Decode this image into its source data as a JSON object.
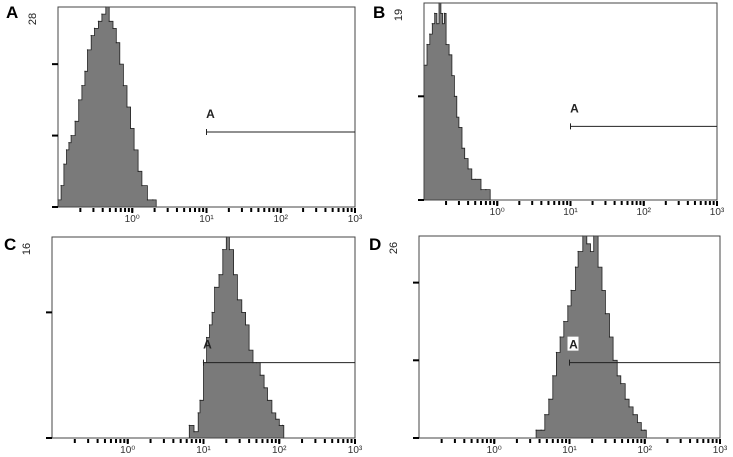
{
  "chart_data": [
    {
      "type": "area",
      "panel_label": "A",
      "x_scale": "log",
      "xlim": [
        0.1,
        1000
      ],
      "ylim": [
        0,
        28
      ],
      "y_max_label": "28",
      "y_ticks": [
        0,
        10,
        20
      ],
      "xtick_labels": [
        {
          "x": 1,
          "label": "10⁰"
        },
        {
          "x": 10,
          "label": "10¹"
        },
        {
          "x": 100,
          "label": "10²"
        },
        {
          "x": 1000,
          "label": "10³"
        }
      ],
      "gate": {
        "label": "A",
        "x_start": 10,
        "x_end": 1000,
        "y": 10.5
      },
      "fill_color": "#7a7a7a",
      "x": [
        0.1,
        0.11,
        0.12,
        0.13,
        0.14,
        0.15,
        0.17,
        0.19,
        0.21,
        0.23,
        0.25,
        0.28,
        0.31,
        0.35,
        0.39,
        0.44,
        0.49,
        0.55,
        0.61,
        0.68,
        0.76,
        0.85,
        0.95,
        1.06,
        1.2,
        1.35,
        1.6,
        1.9,
        2.1
      ],
      "values": [
        1,
        3,
        6,
        8,
        9,
        10,
        12,
        15,
        17,
        19,
        22,
        24,
        25,
        26,
        27,
        28,
        26,
        25,
        23,
        20,
        17,
        14,
        11,
        8,
        5,
        3,
        1,
        1,
        0
      ]
    },
    {
      "type": "area",
      "panel_label": "B",
      "x_scale": "log",
      "xlim": [
        0.1,
        1000
      ],
      "ylim": [
        0,
        19
      ],
      "y_max_label": "19",
      "y_ticks": [
        0,
        10
      ],
      "xtick_labels": [
        {
          "x": 1,
          "label": "10⁰"
        },
        {
          "x": 10,
          "label": "10¹"
        },
        {
          "x": 100,
          "label": "10²"
        },
        {
          "x": 1000,
          "label": "10³"
        }
      ],
      "gate": {
        "label": "A",
        "x_start": 10,
        "x_end": 1000,
        "y": 7.1
      },
      "fill_color": "#7a7a7a",
      "x": [
        0.1,
        0.11,
        0.12,
        0.13,
        0.14,
        0.15,
        0.16,
        0.17,
        0.18,
        0.19,
        0.2,
        0.22,
        0.24,
        0.26,
        0.28,
        0.3,
        0.33,
        0.36,
        0.4,
        0.45,
        0.5,
        0.6,
        0.7,
        0.8
      ],
      "values": [
        13,
        15,
        16,
        17,
        18,
        17,
        19,
        18,
        17,
        18,
        15,
        14,
        12,
        10,
        8,
        7,
        5,
        4,
        3,
        2,
        2,
        1,
        1,
        0
      ]
    },
    {
      "type": "area",
      "panel_label": "C",
      "x_scale": "log",
      "xlim": [
        0.1,
        1000
      ],
      "ylim": [
        0,
        16
      ],
      "y_max_label": "16",
      "y_ticks": [
        0,
        10
      ],
      "xtick_labels": [
        {
          "x": 1,
          "label": "10⁰"
        },
        {
          "x": 10,
          "label": "10¹"
        },
        {
          "x": 100,
          "label": "10²"
        },
        {
          "x": 1000,
          "label": "10³"
        }
      ],
      "gate": {
        "label": "A",
        "x_start": 10,
        "x_end": 1000,
        "y": 6
      },
      "fill_color": "#7a7a7a",
      "x": [
        6.5,
        7.5,
        8.5,
        9,
        10,
        11,
        12,
        13,
        14,
        16,
        18,
        20,
        22,
        25,
        28,
        32,
        36,
        40,
        45,
        50,
        56,
        63,
        70,
        80,
        90,
        100,
        110,
        115
      ],
      "values": [
        1,
        0.5,
        2,
        3,
        6,
        8,
        9,
        10,
        12,
        13,
        15,
        16,
        15,
        13,
        11,
        10,
        9,
        7,
        6,
        6,
        5,
        4,
        3,
        2,
        1.5,
        1,
        1,
        0
      ]
    },
    {
      "type": "area",
      "panel_label": "D",
      "x_scale": "log",
      "xlim": [
        0.1,
        1000
      ],
      "ylim": [
        0,
        26
      ],
      "y_max_label": "26",
      "y_ticks": [
        0,
        10,
        20
      ],
      "xtick_labels": [
        {
          "x": 1,
          "label": "10⁰"
        },
        {
          "x": 10,
          "label": "10¹"
        },
        {
          "x": 100,
          "label": "10²"
        },
        {
          "x": 1000,
          "label": "10³"
        }
      ],
      "gate": {
        "label": "A",
        "x_start": 10,
        "x_end": 1000,
        "y": 9.7
      },
      "fill_color": "#7a7a7a",
      "x": [
        3.6,
        4.2,
        4.7,
        5.3,
        6,
        6.7,
        7.5,
        8.4,
        9.5,
        10.5,
        12,
        13,
        15,
        17,
        19,
        21,
        24,
        27,
        30,
        34,
        38,
        43,
        48,
        55,
        62,
        70,
        80,
        90,
        100,
        105
      ],
      "values": [
        1,
        1,
        3,
        5,
        8,
        11,
        13,
        15,
        17,
        19,
        22,
        24,
        26,
        25,
        24,
        26,
        22,
        19,
        16,
        13,
        10,
        8,
        7,
        5,
        4,
        3,
        2,
        1,
        1,
        0
      ]
    }
  ]
}
